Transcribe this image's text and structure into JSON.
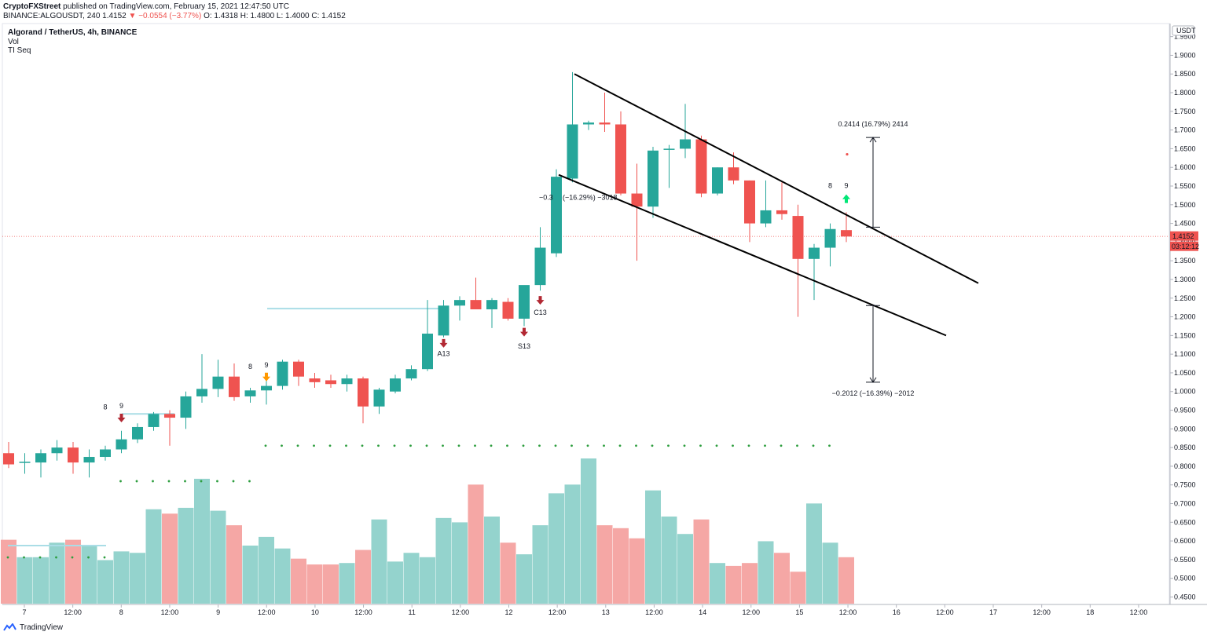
{
  "header": {
    "author": "CryptoFXStreet",
    "published_text": "published on TradingView.com, February 15, 2021 12:47:50 UTC",
    "symbol_line_prefix": "BINANCE:ALGOUSDT, 240",
    "last_price": "1.4152",
    "change_text": "−0.0554 (−3.77%)",
    "ohlc_text": "O: 1.4318  H: 1.4800  L: 1.4000  C: 1.4152"
  },
  "legend": {
    "main": "Algorand / TetherUS, 4h, BINANCE",
    "studies": [
      "Vol",
      "TI Seq"
    ]
  },
  "footer": {
    "brand": "TradingView"
  },
  "colors": {
    "up": "#26a69a",
    "down": "#ef5350",
    "vol_up": "#94d3cd",
    "vol_down": "#f5a7a5",
    "dots": "#2e9e3f",
    "seq_up": "#089981",
    "seq_orange": "#ff9800",
    "arrow_down": "#b22833",
    "arrow_up": "#00e676",
    "line": "#000000"
  },
  "chart_data": {
    "type": "candlestick",
    "ylim": [
      0.43,
      1.985
    ],
    "y_ticks": [
      "1.9500",
      "1.9000",
      "1.8500",
      "1.8000",
      "1.7500",
      "1.7000",
      "1.6500",
      "1.6000",
      "1.5500",
      "1.5000",
      "1.4500",
      "1.4000",
      "1.3500",
      "1.3000",
      "1.2500",
      "1.2000",
      "1.1500",
      "1.1000",
      "1.0500",
      "1.0000",
      "0.9500",
      "0.9000",
      "0.8500",
      "0.8000",
      "0.7500",
      "0.7000",
      "0.6500",
      "0.6000",
      "0.5500",
      "0.5000",
      "0.4500"
    ],
    "currency_label": "USDT",
    "x_ticks": [
      "7",
      "12:00",
      "8",
      "12:00",
      "9",
      "12:00",
      "10",
      "12:00",
      "11",
      "12:00",
      "12",
      "12:00",
      "13",
      "12:00",
      "14",
      "12:00",
      "15",
      "12:00",
      "16",
      "12:00",
      "17",
      "12:00",
      "18",
      "12:00"
    ],
    "candles": [
      {
        "o": 0.835,
        "h": 0.865,
        "l": 0.795,
        "c": 0.805
      },
      {
        "o": 0.81,
        "h": 0.835,
        "l": 0.78,
        "c": 0.812
      },
      {
        "o": 0.81,
        "h": 0.845,
        "l": 0.77,
        "c": 0.835
      },
      {
        "o": 0.835,
        "h": 0.87,
        "l": 0.815,
        "c": 0.85
      },
      {
        "o": 0.85,
        "h": 0.865,
        "l": 0.78,
        "c": 0.81
      },
      {
        "o": 0.81,
        "h": 0.845,
        "l": 0.77,
        "c": 0.825
      },
      {
        "o": 0.825,
        "h": 0.855,
        "l": 0.815,
        "c": 0.845
      },
      {
        "o": 0.845,
        "h": 0.895,
        "l": 0.835,
        "c": 0.872
      },
      {
        "o": 0.872,
        "h": 0.915,
        "l": 0.862,
        "c": 0.905
      },
      {
        "o": 0.905,
        "h": 0.945,
        "l": 0.895,
        "c": 0.94
      },
      {
        "o": 0.94,
        "h": 0.95,
        "l": 0.855,
        "c": 0.93
      },
      {
        "o": 0.93,
        "h": 1.0,
        "l": 0.9,
        "c": 0.987
      },
      {
        "o": 0.987,
        "h": 1.1,
        "l": 0.97,
        "c": 1.007
      },
      {
        "o": 1.007,
        "h": 1.085,
        "l": 0.985,
        "c": 1.04
      },
      {
        "o": 1.04,
        "h": 1.075,
        "l": 0.975,
        "c": 0.985
      },
      {
        "o": 0.987,
        "h": 1.01,
        "l": 0.97,
        "c": 1.003
      },
      {
        "o": 1.003,
        "h": 1.045,
        "l": 0.965,
        "c": 1.015
      },
      {
        "o": 1.015,
        "h": 1.085,
        "l": 1.005,
        "c": 1.08
      },
      {
        "o": 1.08,
        "h": 1.085,
        "l": 1.015,
        "c": 1.04
      },
      {
        "o": 1.035,
        "h": 1.05,
        "l": 1.01,
        "c": 1.025
      },
      {
        "o": 1.03,
        "h": 1.045,
        "l": 1.01,
        "c": 1.02
      },
      {
        "o": 1.02,
        "h": 1.045,
        "l": 1.0,
        "c": 1.035
      },
      {
        "o": 1.035,
        "h": 1.04,
        "l": 0.915,
        "c": 0.96
      },
      {
        "o": 0.96,
        "h": 1.01,
        "l": 0.94,
        "c": 1.005
      },
      {
        "o": 1.0,
        "h": 1.045,
        "l": 0.995,
        "c": 1.035
      },
      {
        "o": 1.035,
        "h": 1.07,
        "l": 1.03,
        "c": 1.06
      },
      {
        "o": 1.06,
        "h": 1.245,
        "l": 1.055,
        "c": 1.155
      },
      {
        "o": 1.15,
        "h": 1.245,
        "l": 1.145,
        "c": 1.23
      },
      {
        "o": 1.23,
        "h": 1.255,
        "l": 1.19,
        "c": 1.245
      },
      {
        "o": 1.245,
        "h": 1.305,
        "l": 1.23,
        "c": 1.22
      },
      {
        "o": 1.22,
        "h": 1.25,
        "l": 1.17,
        "c": 1.245
      },
      {
        "o": 1.24,
        "h": 1.25,
        "l": 1.19,
        "c": 1.195
      },
      {
        "o": 1.195,
        "h": 1.275,
        "l": 1.175,
        "c": 1.285
      },
      {
        "o": 1.285,
        "h": 1.44,
        "l": 1.27,
        "c": 1.385
      },
      {
        "o": 1.37,
        "h": 1.595,
        "l": 1.36,
        "c": 1.575
      },
      {
        "o": 1.57,
        "h": 1.855,
        "l": 1.56,
        "c": 1.715
      },
      {
        "o": 1.715,
        "h": 1.725,
        "l": 1.7,
        "c": 1.72
      },
      {
        "o": 1.72,
        "h": 1.8,
        "l": 1.695,
        "c": 1.715
      },
      {
        "o": 1.715,
        "h": 1.75,
        "l": 1.525,
        "c": 1.53
      },
      {
        "o": 1.53,
        "h": 1.61,
        "l": 1.35,
        "c": 1.495
      },
      {
        "o": 1.495,
        "h": 1.655,
        "l": 1.465,
        "c": 1.645
      },
      {
        "o": 1.648,
        "h": 1.66,
        "l": 1.545,
        "c": 1.65
      },
      {
        "o": 1.65,
        "h": 1.77,
        "l": 1.625,
        "c": 1.675
      },
      {
        "o": 1.675,
        "h": 1.685,
        "l": 1.52,
        "c": 1.53
      },
      {
        "o": 1.53,
        "h": 1.6,
        "l": 1.525,
        "c": 1.6
      },
      {
        "o": 1.6,
        "h": 1.64,
        "l": 1.555,
        "c": 1.565
      },
      {
        "o": 1.565,
        "h": 1.565,
        "l": 1.4,
        "c": 1.45
      },
      {
        "o": 1.45,
        "h": 1.565,
        "l": 1.44,
        "c": 1.485
      },
      {
        "o": 1.485,
        "h": 1.56,
        "l": 1.46,
        "c": 1.475
      },
      {
        "o": 1.47,
        "h": 1.5,
        "l": 1.2,
        "c": 1.355
      },
      {
        "o": 1.355,
        "h": 1.395,
        "l": 1.245,
        "c": 1.385
      },
      {
        "o": 1.385,
        "h": 1.45,
        "l": 1.335,
        "c": 1.435
      },
      {
        "o": 1.432,
        "h": 1.48,
        "l": 1.4,
        "c": 1.415
      }
    ],
    "volume_rel": [
      0.44,
      0.32,
      0.32,
      0.42,
      0.44,
      0.4,
      0.3,
      0.36,
      0.35,
      0.65,
      0.62,
      0.66,
      0.86,
      0.64,
      0.54,
      0.4,
      0.46,
      0.38,
      0.31,
      0.27,
      0.27,
      0.28,
      0.37,
      0.58,
      0.29,
      0.35,
      0.32,
      0.59,
      0.56,
      0.82,
      0.6,
      0.42,
      0.34,
      0.54,
      0.76,
      0.82,
      1.0,
      0.54,
      0.52,
      0.45,
      0.78,
      0.6,
      0.48,
      0.58,
      0.28,
      0.26,
      0.28,
      0.43,
      0.35,
      0.22,
      0.69,
      0.42,
      0.32,
      0.14
    ],
    "seq_labels": [
      {
        "i": 7,
        "text": "9",
        "color": "seq_up",
        "y": 0.955
      },
      {
        "i": 16,
        "text": "9",
        "color": "seq_up",
        "y": 1.065
      },
      {
        "i": 27,
        "text": "A13",
        "color": "#2962ff",
        "y": 1.095
      },
      {
        "i": 32,
        "text": "S13",
        "color": "seq_orange",
        "y": 1.115
      },
      {
        "i": 33,
        "text": "C13",
        "color": "#b434c4",
        "y": 1.205
      },
      {
        "i": 52,
        "text": "9",
        "color": "down",
        "y": 1.545
      }
    ],
    "measurements": [
      {
        "text": "0.2414 (16.79%) 2414",
        "from": 1.44,
        "to": 1.68
      },
      {
        "text": "−0.2012 (−16.39%) −2012",
        "from": 1.23,
        "to": 1.025
      }
    ],
    "partial_label": "−0.3",
    "partial_label_2": "(−16.29%) −3018",
    "current_price_label": "1.4152",
    "countdown_label": "03:12:12"
  }
}
